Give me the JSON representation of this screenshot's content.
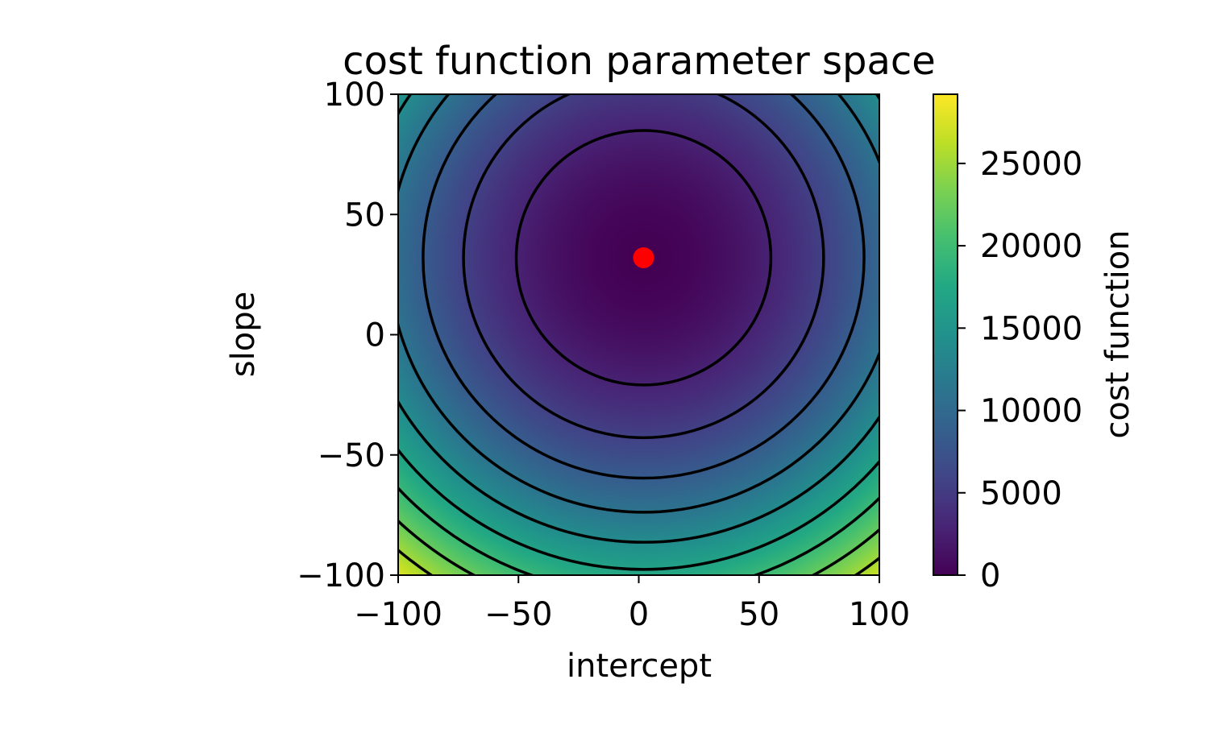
{
  "chart_data": {
    "type": "heatmap",
    "title": "cost function parameter space",
    "xlabel": "intercept",
    "ylabel": "slope",
    "xlim": [
      -100,
      100
    ],
    "ylim": [
      -100,
      100
    ],
    "x_ticks": [
      -100,
      -50,
      0,
      50,
      100
    ],
    "y_ticks": [
      -100,
      -50,
      0,
      50,
      100
    ],
    "x_tick_labels": [
      "−100",
      "−50",
      "0",
      "50",
      "100"
    ],
    "y_tick_labels": [
      "−100",
      "−50",
      "0",
      "50",
      "100"
    ],
    "colormap": "viridis",
    "colorbar": {
      "label": "cost function",
      "range": [
        0,
        29200
      ],
      "ticks": [
        0,
        5000,
        10000,
        15000,
        20000,
        25000
      ],
      "tick_labels": [
        "0",
        "5000",
        "10000",
        "15000",
        "20000",
        "25000"
      ]
    },
    "cost_surface": {
      "form": "a*(intercept - x0)^2 + b*(slope - y0)^2",
      "x0": 2,
      "y0": 32,
      "a": 1.0,
      "b": 1.0,
      "offset": 0
    },
    "contour_levels": [
      2800,
      5600,
      8400,
      11200,
      14000,
      16800,
      19600,
      22400,
      25200,
      28000
    ],
    "contour_color": "#000000",
    "minimum_marker": {
      "x": 2,
      "y": 32,
      "color": "#ff0000"
    },
    "grid": false
  }
}
